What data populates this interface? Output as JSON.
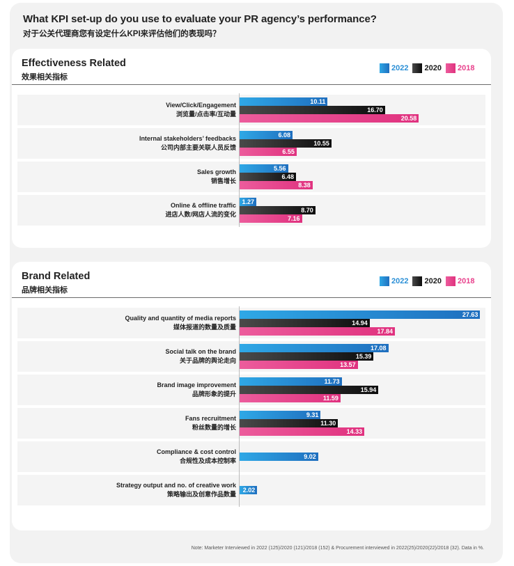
{
  "question": {
    "en": "What KPI set-up do you use to evaluate your PR agency’s performance?",
    "zh": "对于公关代理商您有设定什么KPI来评估他们的表现吗？"
  },
  "legend": [
    {
      "label": "2022",
      "color": "#2a8fd6"
    },
    {
      "label": "2020",
      "color": "#1a1a1a"
    },
    {
      "label": "2018",
      "color": "#e8418c"
    }
  ],
  "chart_data": [
    {
      "type": "bar",
      "orientation": "horizontal",
      "title": "Effectiveness Related",
      "subtitle": "效果相关指标",
      "series_names": [
        "2022",
        "2020",
        "2018"
      ],
      "categories": [
        {
          "en": "View/Click/Engagement",
          "zh": "浏览量/点击率/互动量",
          "values": [
            10.11,
            16.7,
            20.58
          ],
          "labels": [
            "10.11",
            "16.70",
            "20.58"
          ]
        },
        {
          "en": "Internal stakeholders’ feedbacks",
          "zh": "公司内部主要关联人员反馈",
          "values": [
            6.08,
            10.55,
            6.55
          ],
          "labels": [
            "6.08",
            "10.55",
            "6.55"
          ]
        },
        {
          "en": "Sales growth",
          "zh": "销售增长",
          "values": [
            5.56,
            6.48,
            8.38
          ],
          "labels": [
            "5.56",
            "6.48",
            "8.38"
          ]
        },
        {
          "en": "Online & offline traffic",
          "zh": "进店人数/网店人流的变化",
          "values": [
            1.27,
            8.7,
            7.16
          ],
          "labels": [
            "1.27",
            "8.70",
            "7.16"
          ]
        }
      ]
    },
    {
      "type": "bar",
      "orientation": "horizontal",
      "title": "Brand Related",
      "subtitle": "品牌相关指标",
      "series_names": [
        "2022",
        "2020",
        "2018"
      ],
      "categories": [
        {
          "en": "Quality and quantity of media reports",
          "zh": "媒体报道的数量及质量",
          "values": [
            27.63,
            14.94,
            17.84
          ],
          "labels": [
            "27.63",
            "14.94",
            "17.84"
          ]
        },
        {
          "en": "Social talk on the brand",
          "zh": "关于品牌的舆论走向",
          "values": [
            17.08,
            15.39,
            13.57
          ],
          "labels": [
            "17.08",
            "15.39",
            "13.57"
          ]
        },
        {
          "en": "Brand image improvement",
          "zh": "品牌形象的提升",
          "values": [
            11.73,
            15.94,
            11.59
          ],
          "labels": [
            "11.73",
            "15.94",
            "11.59"
          ]
        },
        {
          "en": "Fans recruitment",
          "zh": "粉丝数量的增长",
          "values": [
            9.31,
            11.3,
            14.33
          ],
          "labels": [
            "9.31",
            "11.30",
            "14.33"
          ]
        },
        {
          "en": "Compliance & cost control",
          "zh": "合规性及成本控制率",
          "values": [
            9.02,
            null,
            null
          ],
          "labels": [
            "9.02",
            "",
            ""
          ]
        },
        {
          "en": "Strategy output and no. of creative work",
          "zh": "策略输出及创意作品数量",
          "values": [
            2.02,
            null,
            null
          ],
          "labels": [
            "2.02",
            "",
            ""
          ]
        }
      ]
    }
  ],
  "note": "Note: Marketer Interviewed in 2022 (125)/2020 (121)/2018 (152) & Procurement interviewed in 2022(25)/2020(22)/2018 (32). Data in %."
}
